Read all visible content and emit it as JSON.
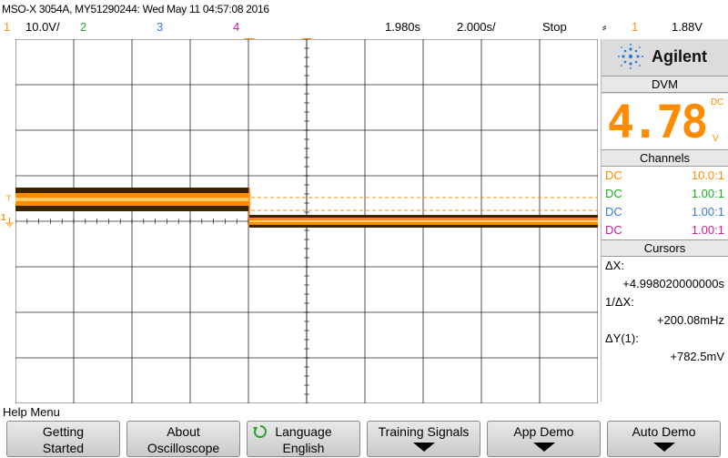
{
  "title": "MSO-X 3054A, MY51290244: Wed May 11 04:57:08 2016",
  "status": {
    "ch1_num": "1",
    "ch1_scale": "10.0V/",
    "ch2_num": "2",
    "ch3_num": "3",
    "ch4_num": "4",
    "time_offset": "1.980s",
    "time_scale": "2.000s/",
    "run_state": "Stop",
    "trigger_symbol": "⸗",
    "trigger_channel": "1",
    "trigger_level": "1.88V"
  },
  "panel": {
    "brand": "Agilent",
    "dvm_header": "DVM",
    "dvm_value": "4.78",
    "dvm_mode": "DC",
    "dvm_unit": "V",
    "channels_header": "Channels",
    "channels": [
      {
        "coupling": "DC",
        "ratio": "10.0:1",
        "color": "#ff8c00"
      },
      {
        "coupling": "DC",
        "ratio": "1.00:1",
        "color": "#22aa22"
      },
      {
        "coupling": "DC",
        "ratio": "1.00:1",
        "color": "#3a7bd5"
      },
      {
        "coupling": "DC",
        "ratio": "1.00:1",
        "color": "#cc1a9a"
      }
    ],
    "cursors_header": "Cursors",
    "dx_label": "ΔX:",
    "dx_value": "+4.998020000000s",
    "inv_dx_label": "1/ΔX:",
    "inv_dx_value": "+200.08mHz",
    "dy_label": "ΔY(1):",
    "dy_value": "+782.5mV"
  },
  "help": {
    "label": "Help Menu",
    "softkeys": [
      {
        "line1": "Getting",
        "line2": "Started"
      },
      {
        "line1": "About",
        "line2": "Oscilloscope"
      },
      {
        "line1": "Language",
        "line2": "English"
      },
      {
        "line1": "Training Signals",
        "line2": ""
      },
      {
        "line1": "App Demo",
        "line2": ""
      },
      {
        "line1": "Auto Demo",
        "line2": ""
      }
    ]
  },
  "markers": {
    "trigger_marker": "T",
    "ch1_ground_marker": "1"
  },
  "colors": {
    "ch1": "#ff8c00",
    "ch2": "#22aa22",
    "ch3": "#3a7bd5",
    "ch4": "#cc1a9a",
    "grid": "#ffffff",
    "trace": "#ff8c00"
  }
}
